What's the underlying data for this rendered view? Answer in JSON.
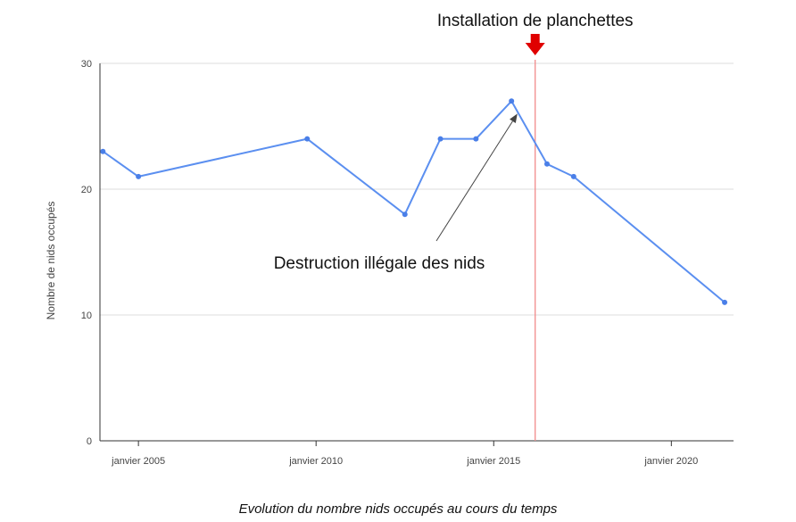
{
  "chart_data": {
    "type": "line",
    "title": "",
    "xlabel": "",
    "ylabel": "Nombre de nids occupés",
    "x_ticks": [
      "janvier 2005",
      "janvier 2010",
      "janvier 2015",
      "janvier 2020"
    ],
    "y_ticks": [
      "0",
      "10",
      "20",
      "30"
    ],
    "xlim": [
      "2003-12",
      "2021-10"
    ],
    "ylim": [
      0,
      30
    ],
    "grid": true,
    "series": [
      {
        "x": [
          "2004-01",
          "2005-01",
          "2009-10",
          "2012-07",
          "2013-07",
          "2014-07",
          "2015-07",
          "2016-07",
          "2017-04",
          "2021-07"
        ],
        "y": [
          23,
          21,
          24,
          18,
          24,
          24,
          27,
          22,
          21,
          11
        ]
      }
    ],
    "annotations": [
      {
        "text": "Installation de planchettes",
        "x": "2016-03",
        "type": "vertical-line"
      },
      {
        "text": "Destruction illégale des nids",
        "target_x": "2015-09",
        "target_y": 26,
        "type": "arrow"
      }
    ],
    "colors": {
      "series": "#5b8ff0",
      "marker": "#4a7fe8",
      "vline": "#f28b8b",
      "arrow_marker": "#e00000",
      "grid": "#dddddd",
      "axis": "#333333"
    }
  },
  "caption": "Evolution du nombre nids occupés au cours du temps"
}
